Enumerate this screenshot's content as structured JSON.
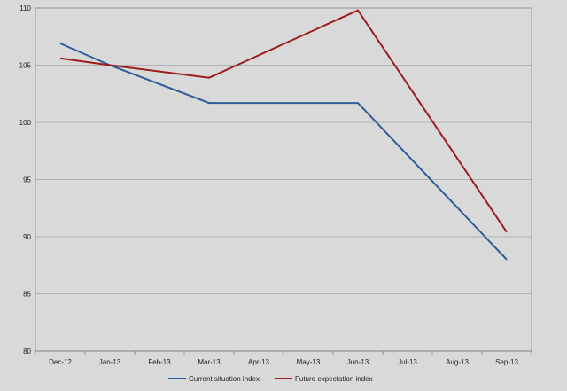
{
  "chart_data": {
    "type": "line",
    "title": "",
    "xlabel": "",
    "ylabel": "",
    "categories": [
      "Dec-12",
      "Jan-13",
      "Feb-13",
      "Mar-13",
      "Apr-13",
      "May-13",
      "Jun-13",
      "Jul-13",
      "Aug-13",
      "Sep-13"
    ],
    "ylim": [
      80,
      110
    ],
    "yticks": [
      80,
      85,
      90,
      95,
      100,
      105,
      110
    ],
    "grid": true,
    "legend_position": "bottom",
    "series": [
      {
        "name": "Current situation index",
        "color": "#2e5c9a",
        "x": [
          "Dec-12",
          "Jan-13",
          "Mar-13",
          "Jun-13",
          "Sep-13"
        ],
        "values": [
          106.9,
          105.0,
          101.7,
          101.7,
          88.0
        ]
      },
      {
        "name": "Future expectation index",
        "color": "#9c1c1c",
        "x": [
          "Dec-12",
          "Jan-13",
          "Mar-13",
          "Jun-13",
          "Sep-13"
        ],
        "values": [
          105.6,
          105.0,
          103.9,
          109.8,
          90.4
        ]
      }
    ]
  }
}
